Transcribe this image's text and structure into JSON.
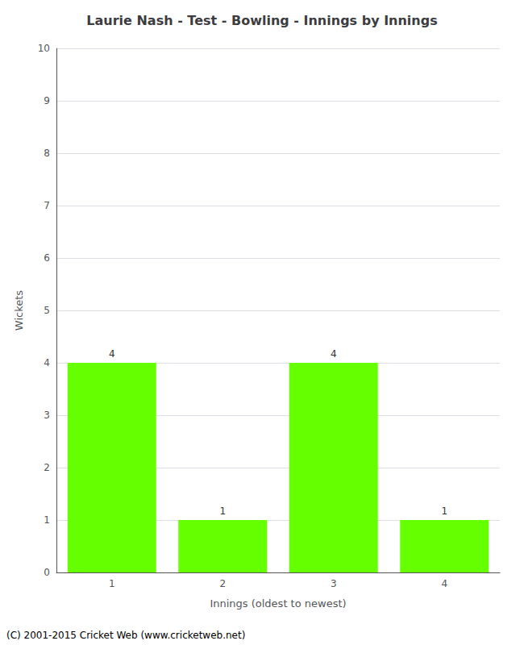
{
  "chart_data": {
    "type": "bar",
    "title": "Laurie Nash - Test - Bowling - Innings by Innings",
    "xlabel": "Innings (oldest to newest)",
    "ylabel": "Wickets",
    "categories": [
      1,
      2,
      3,
      4
    ],
    "values": [
      4,
      1,
      4,
      1
    ],
    "color": "#66ff00",
    "ylim": [
      0,
      10
    ],
    "yticks": [
      0,
      1,
      2,
      3,
      4,
      5,
      6,
      7,
      8,
      9,
      10
    ],
    "grid": true,
    "data_labels": true,
    "annotations": [
      "(C) 2001-2015 Cricket Web (www.cricketweb.net)"
    ]
  }
}
